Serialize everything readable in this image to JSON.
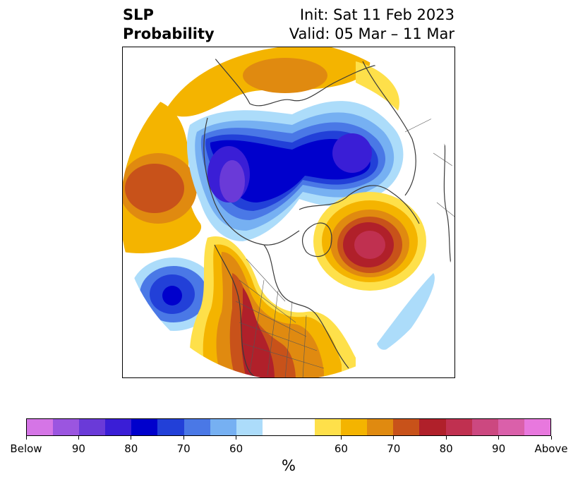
{
  "header": {
    "title_line1": "SLP",
    "title_line2": "Probability",
    "init_text": "Init: Sat 11 Feb 2023",
    "valid_text": "Valid: 05 Mar – 11 Mar"
  },
  "colorbar": {
    "colors": [
      "#d575e6",
      "#9b55e0",
      "#6a3ad8",
      "#3a1ed6",
      "#0000cc",
      "#2240d8",
      "#4a78e6",
      "#76b0f2",
      "#acdcfa",
      "#ffffff",
      "#ffffff",
      "#fee04a",
      "#f4b400",
      "#e08a10",
      "#c8521a",
      "#b0202a",
      "#c03050",
      "#cc4880",
      "#da60aa",
      "#e878de"
    ],
    "tick_labels": [
      "Below",
      "90",
      "80",
      "70",
      "60",
      "60",
      "70",
      "80",
      "90",
      "Above"
    ],
    "unit_label": "%"
  },
  "map": {
    "projection": "north-polar-stereographic",
    "variable": "SLP probability",
    "features": [
      "coastlines",
      "country-borders",
      "us-state-borders"
    ]
  }
}
